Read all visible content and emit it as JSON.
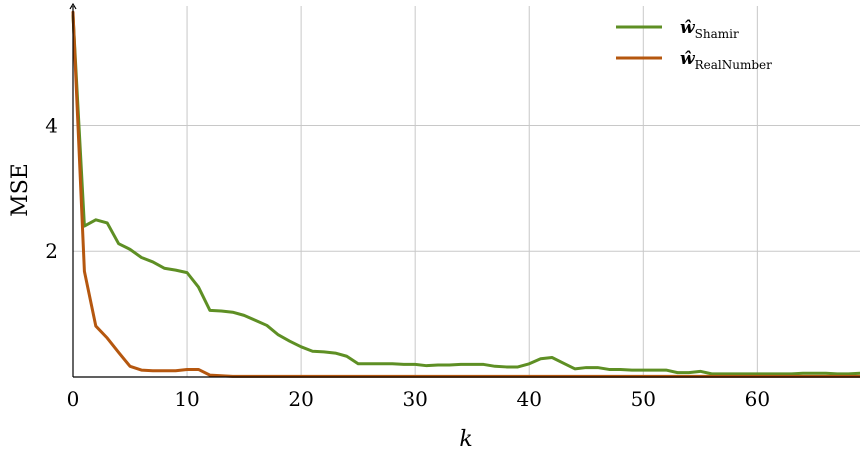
{
  "chart_data": {
    "type": "line",
    "title": "",
    "xlabel": "k",
    "ylabel": "MSE",
    "xlim": [
      0,
      69
    ],
    "ylim": [
      0,
      5.9
    ],
    "xticks": [
      0,
      10,
      20,
      30,
      40,
      50,
      60
    ],
    "yticks": [
      2,
      4
    ],
    "grid": true,
    "legend": "top-right",
    "x": [
      0,
      1,
      2,
      3,
      4,
      5,
      6,
      7,
      8,
      9,
      10,
      11,
      12,
      13,
      14,
      15,
      16,
      17,
      18,
      19,
      20,
      21,
      22,
      23,
      24,
      25,
      26,
      27,
      28,
      29,
      30,
      31,
      32,
      33,
      34,
      35,
      36,
      37,
      38,
      39,
      40,
      41,
      42,
      43,
      44,
      45,
      46,
      47,
      48,
      49,
      50,
      51,
      52,
      53,
      54,
      55,
      56,
      57,
      58,
      59,
      60,
      61,
      62,
      63,
      64,
      65,
      66,
      67,
      68,
      69
    ],
    "series": [
      {
        "name": "Shamir",
        "legend_symbol": "ŵ",
        "color": "#5e8f24",
        "values": [
          5.75,
          2.4,
          2.5,
          2.45,
          2.12,
          2.03,
          1.9,
          1.83,
          1.73,
          1.7,
          1.66,
          1.43,
          1.06,
          1.05,
          1.03,
          0.98,
          0.9,
          0.82,
          0.67,
          0.57,
          0.48,
          0.41,
          0.4,
          0.38,
          0.33,
          0.21,
          0.21,
          0.21,
          0.21,
          0.2,
          0.2,
          0.18,
          0.19,
          0.19,
          0.2,
          0.2,
          0.2,
          0.17,
          0.16,
          0.16,
          0.21,
          0.29,
          0.31,
          0.22,
          0.13,
          0.15,
          0.15,
          0.12,
          0.12,
          0.11,
          0.11,
          0.11,
          0.11,
          0.07,
          0.07,
          0.09,
          0.05,
          0.05,
          0.05,
          0.05,
          0.05,
          0.05,
          0.05,
          0.05,
          0.06,
          0.06,
          0.06,
          0.05,
          0.05,
          0.06
        ]
      },
      {
        "name": "RealNumber",
        "legend_symbol": "ŵ",
        "color": "#b5570f",
        "values": [
          5.8,
          1.68,
          0.81,
          0.62,
          0.39,
          0.17,
          0.11,
          0.1,
          0.1,
          0.1,
          0.12,
          0.12,
          0.03,
          0.02,
          0.01,
          0.01,
          0.01,
          0.01,
          0.01,
          0.01,
          0.01,
          0.01,
          0.01,
          0.01,
          0.01,
          0.01,
          0.01,
          0.01,
          0.01,
          0.01,
          0.01,
          0.01,
          0.01,
          0.01,
          0.01,
          0.01,
          0.01,
          0.01,
          0.01,
          0.01,
          0.01,
          0.01,
          0.01,
          0.01,
          0.01,
          0.01,
          0.01,
          0.01,
          0.01,
          0.01,
          0.01,
          0.01,
          0.01,
          0.01,
          0.01,
          0.01,
          0.01,
          0.01,
          0.01,
          0.01,
          0.01,
          0.01,
          0.01,
          0.01,
          0.01,
          0.01,
          0.01,
          0.01,
          0.01,
          0.01
        ]
      }
    ]
  }
}
